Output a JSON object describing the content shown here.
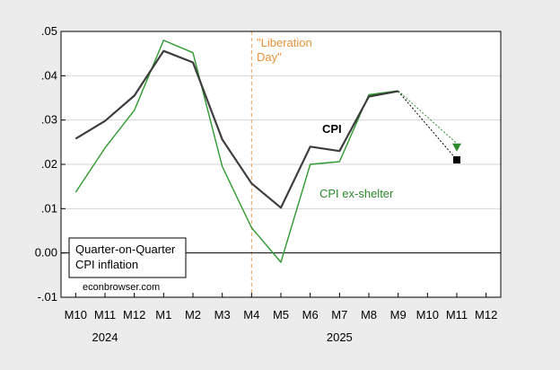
{
  "chart_data": {
    "type": "line",
    "categories": [
      "M10",
      "M11",
      "M12",
      "M1",
      "M2",
      "M3",
      "M4",
      "M5",
      "M6",
      "M7",
      "M8",
      "M9",
      "M10",
      "M11",
      "M12"
    ],
    "years": [
      {
        "label": "2024",
        "index": 1
      },
      {
        "label": "2025",
        "index": 9
      }
    ],
    "ylim": [
      -0.01,
      0.05
    ],
    "yticks": [
      -0.01,
      0.0,
      0.01,
      0.02,
      0.03,
      0.04,
      0.05
    ],
    "ytick_labels": [
      "-.01",
      "0.00",
      ".01",
      ".02",
      ".03",
      ".04",
      ".05"
    ],
    "grid": true,
    "series": [
      {
        "name": "CPI",
        "color": "#3d3d3d",
        "values": [
          0.0258,
          0.0298,
          0.0355,
          0.0456,
          0.043,
          0.0256,
          0.0157,
          0.0102,
          0.024,
          0.023,
          0.0353,
          0.0365,
          null,
          null,
          null
        ]
      },
      {
        "name": "CPI ex-shelter",
        "color": "#2f9a2f",
        "values": [
          0.0137,
          0.0237,
          0.0322,
          0.048,
          0.0452,
          0.0195,
          0.0057,
          -0.0021,
          0.02,
          0.0206,
          0.0357,
          0.0366,
          null,
          null,
          null
        ]
      }
    ],
    "projections": [
      {
        "series": "CPI",
        "from": [
          11,
          0.0365
        ],
        "to": [
          13,
          0.021
        ],
        "marker": "square",
        "color": "#000000"
      },
      {
        "series": "CPI ex-shelter",
        "from": [
          11,
          0.0366
        ],
        "to": [
          13,
          0.0235
        ],
        "marker": "triangle-down",
        "color": "#2a8a2a"
      }
    ],
    "vline": {
      "index": 6,
      "label_lines": [
        "\"Liberation",
        "Day\""
      ],
      "color": "#f0a050"
    },
    "hline": {
      "value": 0.0,
      "color": "#000000"
    },
    "legend_box": {
      "lines": [
        "Quarter-on-Quarter",
        "CPI inflation"
      ],
      "placement": "bottom-left"
    },
    "series_labels": [
      {
        "text": "CPI",
        "color": "#000000",
        "bold": true
      },
      {
        "text": "CPI ex-shelter",
        "color": "#2a8a2a",
        "bold": false
      }
    ],
    "source": "econbrowser.com"
  }
}
